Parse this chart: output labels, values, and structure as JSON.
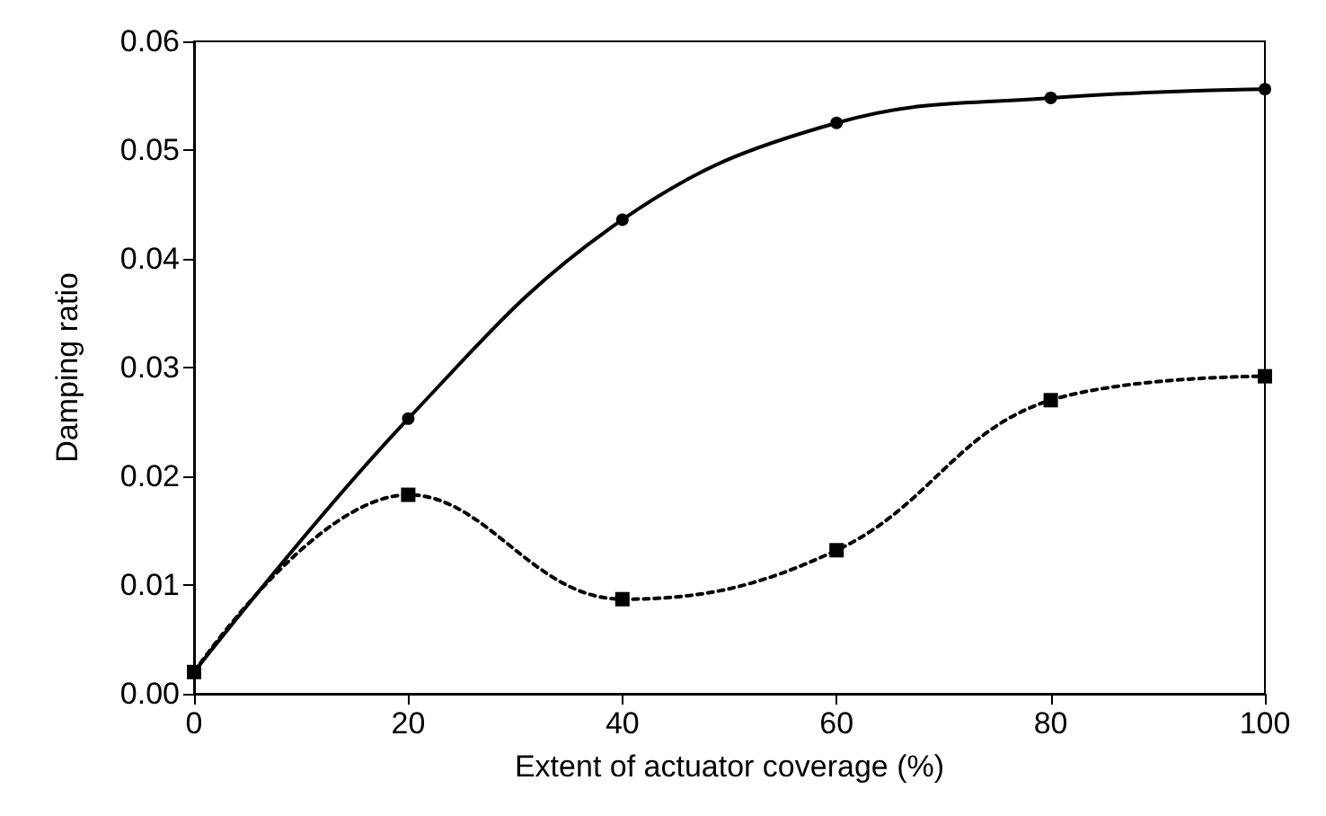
{
  "chart_data": {
    "type": "line",
    "xlabel": "Extent of actuator coverage (%)",
    "ylabel": "Damping ratio",
    "x": [
      0,
      20,
      40,
      60,
      80,
      100
    ],
    "series": [
      {
        "color": "#000000",
        "marker": "square",
        "line_style": "dotted",
        "values": [
          0.002,
          0.0183,
          0.0087,
          0.0132,
          0.027,
          0.0292
        ]
      },
      {
        "color": "#000000",
        "marker": "circle",
        "line_style": "solid",
        "values": [
          0.002,
          0.0253,
          0.0436,
          0.0525,
          0.0548,
          0.0556
        ]
      }
    ],
    "xlim": [
      0,
      100
    ],
    "xticks": [
      0,
      20,
      40,
      60,
      80,
      100
    ],
    "ylim": [
      0,
      0.06
    ],
    "yticks": [
      {
        "value": 0,
        "label": "0.00"
      },
      0.01,
      0.02,
      0.03,
      0.04,
      0.05,
      0.06
    ],
    "grid": false
  }
}
